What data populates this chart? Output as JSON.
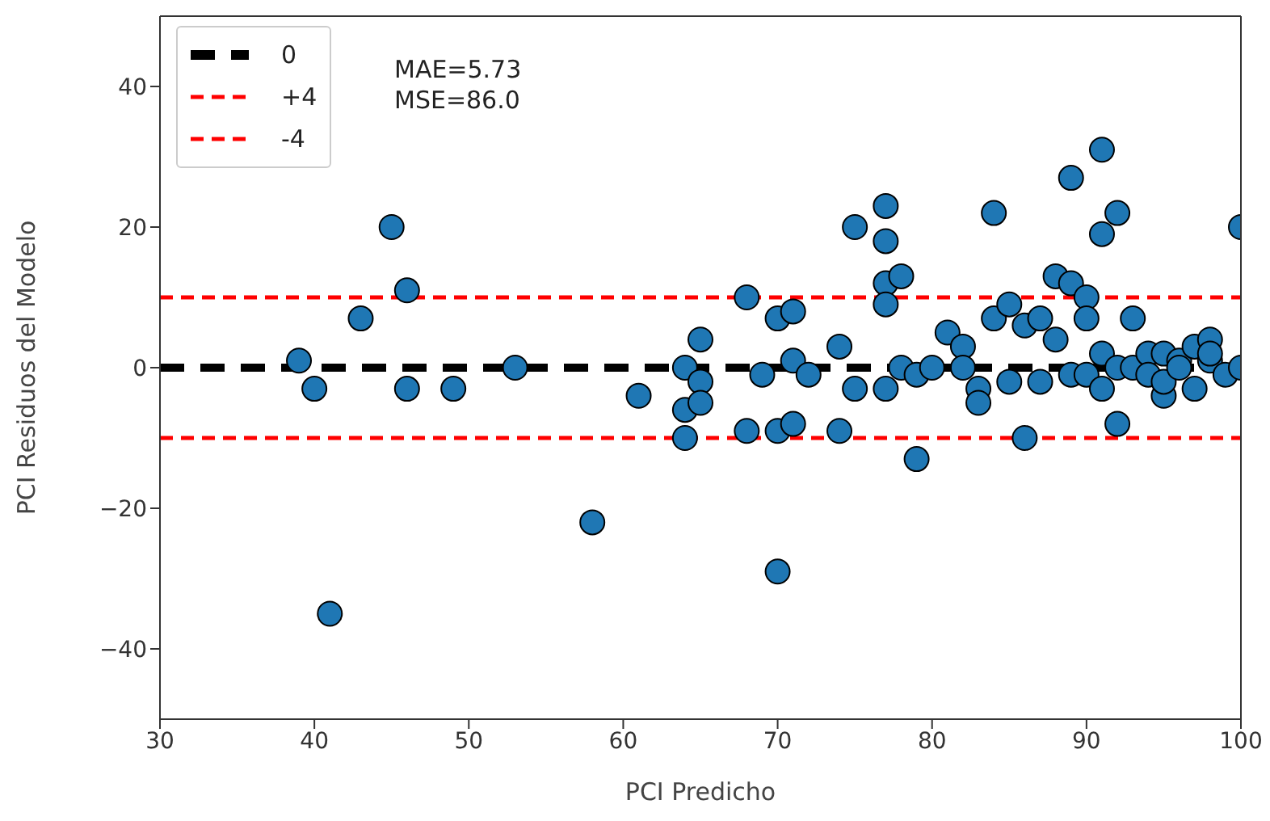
{
  "chart_data": {
    "type": "scatter",
    "xlabel": "PCI Predicho",
    "ylabel": "PCI Residuos del Modelo",
    "xlim": [
      30,
      100
    ],
    "xticks": [
      30,
      40,
      50,
      60,
      70,
      80,
      90,
      100
    ],
    "ylim": [
      -50,
      50
    ],
    "yticks": [
      -40,
      -20,
      0,
      20,
      40
    ],
    "grid": false,
    "legend": "top left",
    "annotations": [
      "MAE=5.73",
      "MSE=86.0"
    ],
    "series": [
      {
        "marker": "circle",
        "color": "#1f77b4",
        "x": [
          39,
          40,
          41,
          43,
          45,
          46,
          46,
          49,
          53,
          58,
          61,
          64,
          64,
          64,
          65,
          65,
          65,
          68,
          68,
          69,
          70,
          70,
          70,
          71,
          71,
          71,
          72,
          74,
          74,
          75,
          75,
          77,
          77,
          77,
          77,
          77,
          78,
          78,
          79,
          79,
          80,
          81,
          82,
          82,
          83,
          83,
          84,
          84,
          85,
          85,
          86,
          86,
          87,
          87,
          88,
          88,
          89,
          89,
          89,
          90,
          90,
          90,
          91,
          91,
          91,
          91,
          92,
          92,
          92,
          93,
          93,
          94,
          94,
          95,
          95,
          95,
          96,
          96,
          97,
          97,
          98,
          98,
          98,
          99,
          100,
          100
        ],
        "values": [
          1,
          -3,
          -35,
          7,
          20,
          11,
          -3,
          -3,
          0,
          -22,
          -4,
          0,
          -6,
          -10,
          4,
          -2,
          -5,
          10,
          -9,
          -1,
          7,
          -9,
          -29,
          8,
          1,
          -8,
          -1,
          3,
          -9,
          20,
          -3,
          23,
          18,
          12,
          9,
          -3,
          13,
          0,
          -13,
          -1,
          0,
          5,
          3,
          0,
          -3,
          -5,
          22,
          7,
          9,
          -2,
          6,
          -10,
          7,
          -2,
          13,
          4,
          27,
          12,
          -1,
          10,
          7,
          -1,
          31,
          19,
          2,
          -3,
          22,
          -8,
          0,
          7,
          0,
          2,
          -1,
          -4,
          2,
          -2,
          1,
          0,
          3,
          -3,
          4,
          1,
          2,
          -1,
          20,
          0
        ]
      },
      {
        "type": "line",
        "marker": "none",
        "name": "0",
        "color": "#000000",
        "line_style": "dashed",
        "x": [
          30,
          100
        ],
        "values": [
          0,
          0
        ]
      },
      {
        "type": "line",
        "marker": "none",
        "name": "+4",
        "color": "#ff0000",
        "line_style": "dashed",
        "x": [
          30,
          100
        ],
        "values": [
          10,
          10
        ]
      },
      {
        "type": "line",
        "marker": "none",
        "name": "-4",
        "color": "#ff0000",
        "line_style": "dashed",
        "x": [
          30,
          100
        ],
        "values": [
          -10,
          -10
        ]
      }
    ]
  }
}
